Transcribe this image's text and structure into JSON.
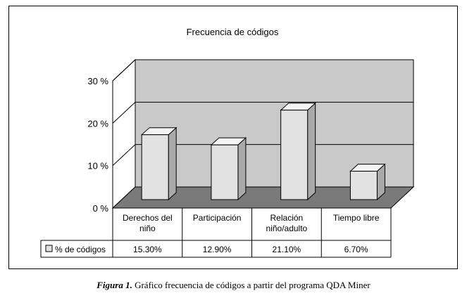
{
  "chart_data": {
    "type": "bar",
    "title": "Frecuencia de códigos",
    "categories": [
      [
        "Derechos del",
        "niño"
      ],
      [
        "Participación"
      ],
      [
        "Relación",
        "niño/adulto"
      ],
      [
        "Tiempo libre"
      ]
    ],
    "series": [
      {
        "name": "% de códigos",
        "values": [
          15.3,
          12.9,
          21.1,
          6.7
        ],
        "labels": [
          "15.30%",
          "12.90%",
          "21.10%",
          "6.70%"
        ]
      }
    ],
    "y_ticks": [
      0,
      10,
      20,
      30
    ],
    "y_tick_labels": [
      "0 %",
      "10 %",
      "20 %",
      "30 %"
    ],
    "ylim": [
      0,
      30
    ],
    "grid": true,
    "three_d": true,
    "colors": {
      "wall": "#c9c9c9",
      "floor": "#7a7a7a",
      "bar_front": "#e2e2e2",
      "bar_top": "#f4f4f4",
      "bar_side": "#a9a9a9"
    }
  },
  "caption": {
    "lead": "Figura 1.",
    "text": "Gráfico frecuencia de códigos a partir del programa QDA Miner"
  }
}
